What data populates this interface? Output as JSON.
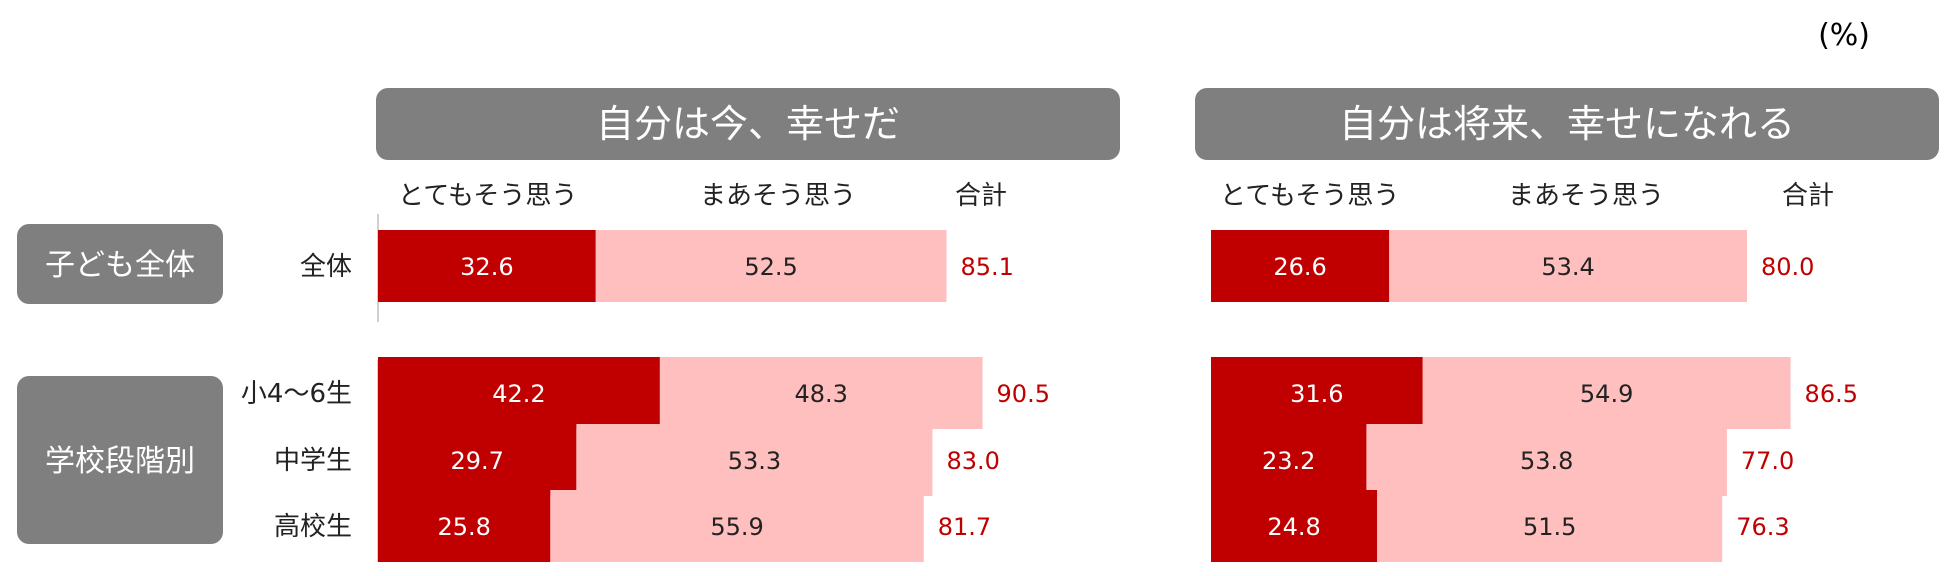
{
  "chart_data": {
    "type": "bar",
    "stacked": true,
    "orientation": "horizontal",
    "unit": "(%)",
    "groups": [
      {
        "label": "子ども全体",
        "rows": [
          0
        ]
      },
      {
        "label": "学校段階別",
        "rows": [
          1,
          2,
          3
        ]
      }
    ],
    "categories": [
      "全体",
      "小4〜6生",
      "中学生",
      "高校生"
    ],
    "panels": [
      {
        "title": "自分は今、幸せだ",
        "series": [
          {
            "name": "とてもそう思う",
            "values": [
              32.6,
              42.2,
              29.7,
              25.8
            ],
            "color": "#c00000"
          },
          {
            "name": "まあそう思う",
            "values": [
              52.5,
              48.3,
              53.3,
              55.9
            ],
            "color": "#ffbfbf"
          }
        ],
        "total_label": "合計",
        "totals": [
          "85.1",
          "90.5",
          "83.0",
          "81.7"
        ]
      },
      {
        "title": "自分は将来、幸せになれる",
        "series": [
          {
            "name": "とてもそう思う",
            "values": [
              26.6,
              31.6,
              23.2,
              24.8
            ],
            "color": "#c00000"
          },
          {
            "name": "まあそう思う",
            "values": [
              53.4,
              54.9,
              53.8,
              51.5
            ],
            "color": "#ffbfbf"
          }
        ],
        "total_label": "合計",
        "totals": [
          "80.0",
          "86.5",
          "77.0",
          "76.3"
        ]
      }
    ],
    "colors": {
      "header_bg": "#7f7f7f",
      "total_text": "#c00000",
      "axis_line": "#d0d0d0"
    }
  }
}
